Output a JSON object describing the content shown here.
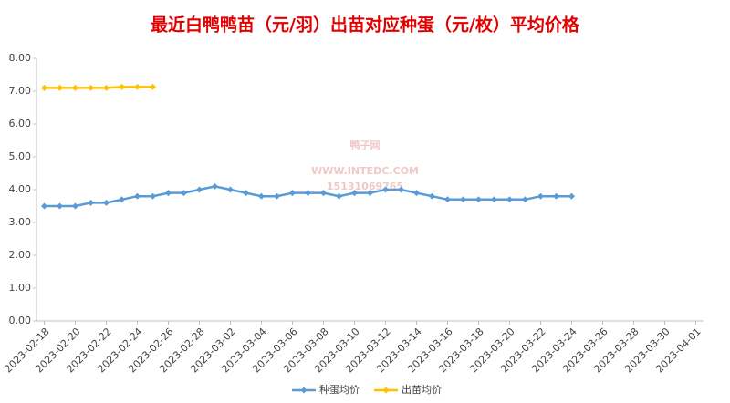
{
  "chart_data": {
    "type": "line",
    "title": "最近白鸭鸭苗（元/羽）出苗对应种蛋（元/枚）平均价格",
    "watermark": [
      "鸭子网",
      "WWW.INTEDC.COM",
      "15131069765"
    ],
    "categories": [
      "2023-02-18",
      null,
      "2023-02-20",
      null,
      "2023-02-22",
      null,
      "2023-02-24",
      null,
      "2023-02-26",
      null,
      "2023-02-28",
      null,
      "2023-03-02",
      null,
      "2023-03-04",
      null,
      "2023-03-06",
      null,
      "2023-03-08",
      null,
      "2023-03-10",
      null,
      "2023-03-12",
      null,
      "2023-03-14",
      null,
      "2023-03-16",
      null,
      "2023-03-18",
      null,
      "2023-03-20",
      null,
      "2023-03-22",
      null,
      "2023-03-24",
      null,
      "2023-03-26",
      null,
      "2023-03-28",
      null,
      "2023-03-30",
      null,
      "2023-04-01"
    ],
    "series": [
      {
        "name": "种蛋均价",
        "color": "#5b9bd5",
        "values": [
          3.5,
          3.5,
          3.5,
          3.6,
          3.6,
          3.7,
          3.8,
          3.8,
          3.9,
          3.9,
          4.0,
          4.1,
          4.0,
          3.9,
          3.8,
          3.8,
          3.9,
          3.9,
          3.9,
          3.8,
          3.9,
          3.9,
          4.0,
          4.0,
          3.9,
          3.8,
          3.7,
          3.7,
          3.7,
          3.7,
          3.7,
          3.7,
          3.8,
          3.8,
          3.8,
          null,
          null,
          null,
          null,
          null,
          null,
          null,
          null
        ]
      },
      {
        "name": "出苗均价",
        "color": "#ffc000",
        "values": [
          7.1,
          7.1,
          7.1,
          7.1,
          7.1,
          7.13,
          7.13,
          7.13,
          null,
          null,
          null,
          null,
          null,
          null,
          null,
          null,
          null,
          null,
          null,
          null,
          null,
          null,
          null,
          null,
          null,
          null,
          null,
          null,
          null,
          null,
          null,
          null,
          null,
          null,
          null,
          null,
          null,
          null,
          null,
          null,
          null,
          null,
          null
        ]
      }
    ],
    "ylim": [
      0,
      8
    ],
    "yticks": [
      {
        "value": 0,
        "label": "0.00"
      },
      {
        "value": 1,
        "label": "1.00"
      },
      {
        "value": 2,
        "label": "2.00"
      },
      {
        "value": 3,
        "label": "3.00"
      },
      {
        "value": 4,
        "label": "4.00"
      },
      {
        "value": 5,
        "label": "5.00"
      },
      {
        "value": 6,
        "label": "6.00"
      },
      {
        "value": 7,
        "label": "7.00"
      },
      {
        "value": 8,
        "label": "8.00"
      }
    ],
    "grid": false,
    "legend": "bottom"
  }
}
